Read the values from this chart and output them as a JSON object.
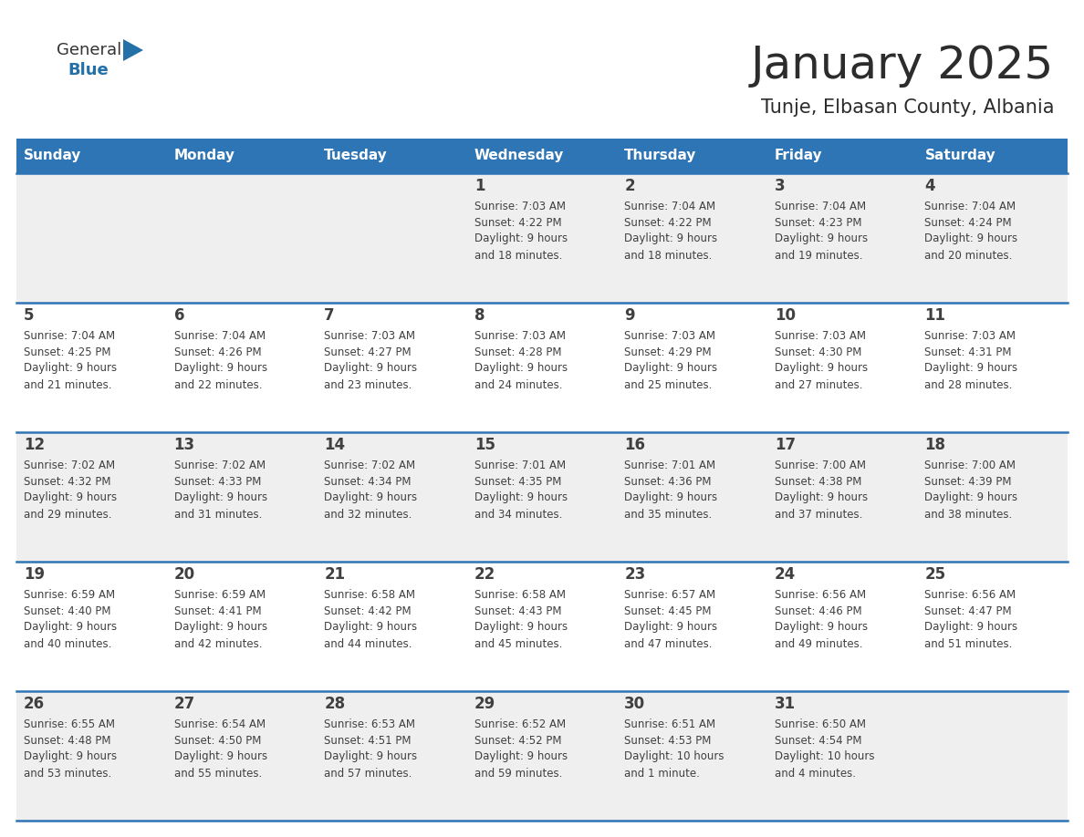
{
  "title": "January 2025",
  "subtitle": "Tunje, Elbasan County, Albania",
  "header_bg_color": "#2E75B6",
  "header_text_color": "#FFFFFF",
  "cell_bg_even": "#EFEFEF",
  "cell_bg_odd": "#FFFFFF",
  "divider_color": "#2E75B6",
  "text_color": "#404040",
  "days_of_week": [
    "Sunday",
    "Monday",
    "Tuesday",
    "Wednesday",
    "Thursday",
    "Friday",
    "Saturday"
  ],
  "calendar_data": [
    [
      {
        "day": "",
        "sunrise": "",
        "sunset": "",
        "daylight": ""
      },
      {
        "day": "",
        "sunrise": "",
        "sunset": "",
        "daylight": ""
      },
      {
        "day": "",
        "sunrise": "",
        "sunset": "",
        "daylight": ""
      },
      {
        "day": "1",
        "sunrise": "7:03 AM",
        "sunset": "4:22 PM",
        "daylight": "9 hours\nand 18 minutes."
      },
      {
        "day": "2",
        "sunrise": "7:04 AM",
        "sunset": "4:22 PM",
        "daylight": "9 hours\nand 18 minutes."
      },
      {
        "day": "3",
        "sunrise": "7:04 AM",
        "sunset": "4:23 PM",
        "daylight": "9 hours\nand 19 minutes."
      },
      {
        "day": "4",
        "sunrise": "7:04 AM",
        "sunset": "4:24 PM",
        "daylight": "9 hours\nand 20 minutes."
      }
    ],
    [
      {
        "day": "5",
        "sunrise": "7:04 AM",
        "sunset": "4:25 PM",
        "daylight": "9 hours\nand 21 minutes."
      },
      {
        "day": "6",
        "sunrise": "7:04 AM",
        "sunset": "4:26 PM",
        "daylight": "9 hours\nand 22 minutes."
      },
      {
        "day": "7",
        "sunrise": "7:03 AM",
        "sunset": "4:27 PM",
        "daylight": "9 hours\nand 23 minutes."
      },
      {
        "day": "8",
        "sunrise": "7:03 AM",
        "sunset": "4:28 PM",
        "daylight": "9 hours\nand 24 minutes."
      },
      {
        "day": "9",
        "sunrise": "7:03 AM",
        "sunset": "4:29 PM",
        "daylight": "9 hours\nand 25 minutes."
      },
      {
        "day": "10",
        "sunrise": "7:03 AM",
        "sunset": "4:30 PM",
        "daylight": "9 hours\nand 27 minutes."
      },
      {
        "day": "11",
        "sunrise": "7:03 AM",
        "sunset": "4:31 PM",
        "daylight": "9 hours\nand 28 minutes."
      }
    ],
    [
      {
        "day": "12",
        "sunrise": "7:02 AM",
        "sunset": "4:32 PM",
        "daylight": "9 hours\nand 29 minutes."
      },
      {
        "day": "13",
        "sunrise": "7:02 AM",
        "sunset": "4:33 PM",
        "daylight": "9 hours\nand 31 minutes."
      },
      {
        "day": "14",
        "sunrise": "7:02 AM",
        "sunset": "4:34 PM",
        "daylight": "9 hours\nand 32 minutes."
      },
      {
        "day": "15",
        "sunrise": "7:01 AM",
        "sunset": "4:35 PM",
        "daylight": "9 hours\nand 34 minutes."
      },
      {
        "day": "16",
        "sunrise": "7:01 AM",
        "sunset": "4:36 PM",
        "daylight": "9 hours\nand 35 minutes."
      },
      {
        "day": "17",
        "sunrise": "7:00 AM",
        "sunset": "4:38 PM",
        "daylight": "9 hours\nand 37 minutes."
      },
      {
        "day": "18",
        "sunrise": "7:00 AM",
        "sunset": "4:39 PM",
        "daylight": "9 hours\nand 38 minutes."
      }
    ],
    [
      {
        "day": "19",
        "sunrise": "6:59 AM",
        "sunset": "4:40 PM",
        "daylight": "9 hours\nand 40 minutes."
      },
      {
        "day": "20",
        "sunrise": "6:59 AM",
        "sunset": "4:41 PM",
        "daylight": "9 hours\nand 42 minutes."
      },
      {
        "day": "21",
        "sunrise": "6:58 AM",
        "sunset": "4:42 PM",
        "daylight": "9 hours\nand 44 minutes."
      },
      {
        "day": "22",
        "sunrise": "6:58 AM",
        "sunset": "4:43 PM",
        "daylight": "9 hours\nand 45 minutes."
      },
      {
        "day": "23",
        "sunrise": "6:57 AM",
        "sunset": "4:45 PM",
        "daylight": "9 hours\nand 47 minutes."
      },
      {
        "day": "24",
        "sunrise": "6:56 AM",
        "sunset": "4:46 PM",
        "daylight": "9 hours\nand 49 minutes."
      },
      {
        "day": "25",
        "sunrise": "6:56 AM",
        "sunset": "4:47 PM",
        "daylight": "9 hours\nand 51 minutes."
      }
    ],
    [
      {
        "day": "26",
        "sunrise": "6:55 AM",
        "sunset": "4:48 PM",
        "daylight": "9 hours\nand 53 minutes."
      },
      {
        "day": "27",
        "sunrise": "6:54 AM",
        "sunset": "4:50 PM",
        "daylight": "9 hours\nand 55 minutes."
      },
      {
        "day": "28",
        "sunrise": "6:53 AM",
        "sunset": "4:51 PM",
        "daylight": "9 hours\nand 57 minutes."
      },
      {
        "day": "29",
        "sunrise": "6:52 AM",
        "sunset": "4:52 PM",
        "daylight": "9 hours\nand 59 minutes."
      },
      {
        "day": "30",
        "sunrise": "6:51 AM",
        "sunset": "4:53 PM",
        "daylight": "10 hours\nand 1 minute."
      },
      {
        "day": "31",
        "sunrise": "6:50 AM",
        "sunset": "4:54 PM",
        "daylight": "10 hours\nand 4 minutes."
      },
      {
        "day": "",
        "sunrise": "",
        "sunset": "",
        "daylight": ""
      }
    ]
  ],
  "logo_general_color": "#333333",
  "logo_blue_color": "#2471A8",
  "logo_triangle_color": "#2471A8"
}
